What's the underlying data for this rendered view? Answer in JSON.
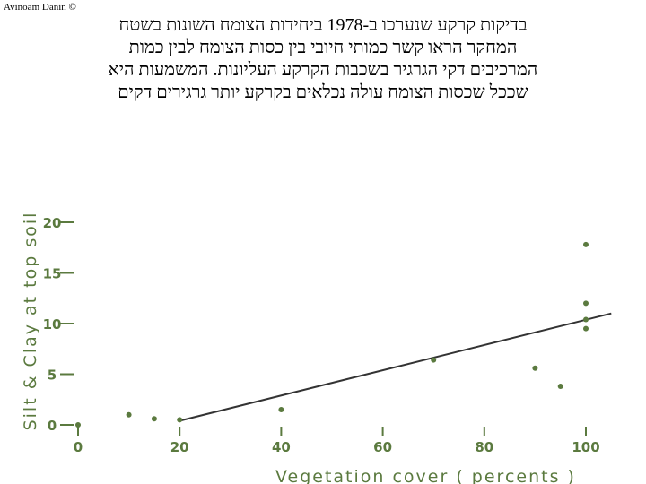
{
  "credit": "Avinoam Danin ©",
  "caption": [
    "בדיקות קרקע שנערכו ב-1978 ביחידות הצומח השונות בשטח",
    "המחקר הראו קשר כמותי חיובי בין כסות הצומח לבין כמות",
    "המרכיבים דקי הגרגיר בשכבות הקרקע העליונות. המשמעות היא",
    "שככל שכסות הצומח עולה נכלאים בקרקע יותר גרגירים דקים"
  ],
  "colors": {
    "ink": "#5b7a3f",
    "points": "#5b7a3f"
  },
  "chart_data": {
    "type": "scatter",
    "xlabel": "Vegetation  cover   ( percents )",
    "ylabel": "Silt & Clay at top soil",
    "xlim": [
      0,
      100
    ],
    "ylim": [
      0,
      22
    ],
    "xticks": [
      0,
      20,
      40,
      60,
      80,
      100
    ],
    "yticks": [
      0,
      5,
      10,
      15,
      20
    ],
    "points": [
      {
        "x": 0,
        "y": 0
      },
      {
        "x": 10,
        "y": 1
      },
      {
        "x": 15,
        "y": 0.6
      },
      {
        "x": 20,
        "y": 0.5
      },
      {
        "x": 40,
        "y": 1.5
      },
      {
        "x": 70,
        "y": 6.4
      },
      {
        "x": 90,
        "y": 5.6
      },
      {
        "x": 95,
        "y": 3.8
      },
      {
        "x": 100,
        "y": 17.8
      },
      {
        "x": 100,
        "y": 12
      },
      {
        "x": 100,
        "y": 10.4
      },
      {
        "x": 100,
        "y": 9.5
      }
    ],
    "trendline": {
      "x": [
        20,
        105
      ],
      "y": [
        0.4,
        11
      ]
    }
  }
}
